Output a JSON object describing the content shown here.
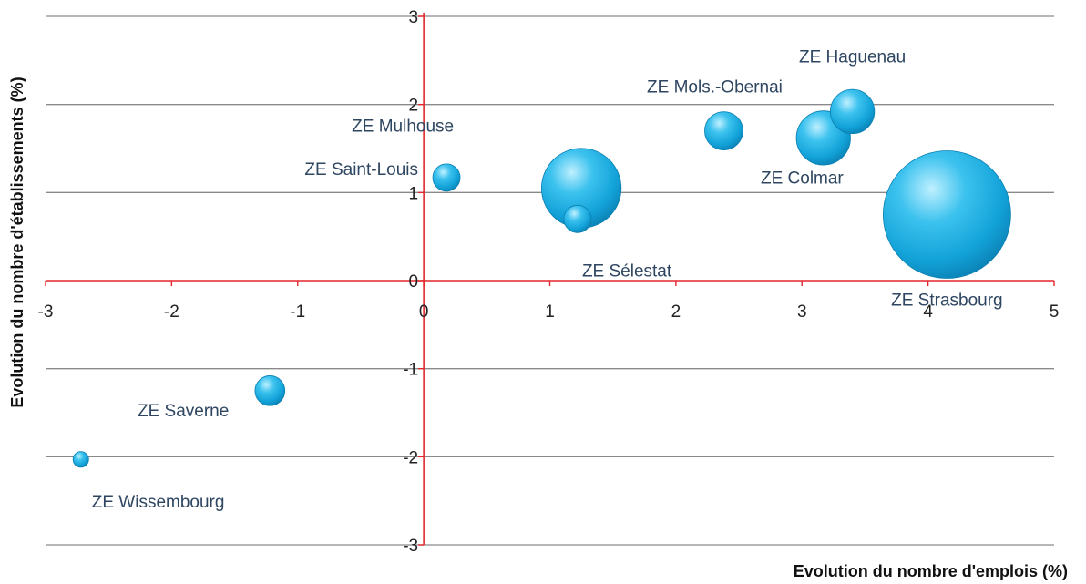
{
  "chart_data": {
    "type": "scatter",
    "subtype": "bubble",
    "xlabel": "Evolution du nombre d'emplois (%)",
    "ylabel": "Evolution du nombre d'établissements (%)",
    "xlim": [
      -3,
      5
    ],
    "ylim": [
      -3,
      3
    ],
    "xticks": [
      "-3",
      "-2",
      "-1",
      "0",
      "1",
      "2",
      "3",
      "4",
      "5"
    ],
    "yticks": [
      "-3",
      "-2",
      "-1",
      "0",
      "1",
      "2",
      "3"
    ],
    "grid": "horizontal",
    "axis_color": "#e3262b",
    "bubble_color": "#1aa9dd",
    "points": [
      {
        "label": "ZE Strasbourg",
        "x": 4.15,
        "y": 0.75,
        "size": 100
      },
      {
        "label": "ZE Mulhouse",
        "x": 1.25,
        "y": 1.05,
        "size": 39
      },
      {
        "label": "ZE Colmar",
        "x": 3.17,
        "y": 1.62,
        "size": 18
      },
      {
        "label": "ZE Haguenau",
        "x": 3.4,
        "y": 1.92,
        "size": 12
      },
      {
        "label": "ZE Mols.-Obernai",
        "x": 2.38,
        "y": 1.7,
        "size": 9
      },
      {
        "label": "ZE Saint-Louis",
        "x": 0.18,
        "y": 1.17,
        "size": 4.6
      },
      {
        "label": "ZE Sélestat",
        "x": 1.22,
        "y": 0.7,
        "size": 4.6
      },
      {
        "label": "ZE Saverne",
        "x": -1.22,
        "y": -1.25,
        "size": 5.5
      },
      {
        "label": "ZE Wissembourg",
        "x": -2.72,
        "y": -2.03,
        "size": 1.5
      }
    ]
  }
}
